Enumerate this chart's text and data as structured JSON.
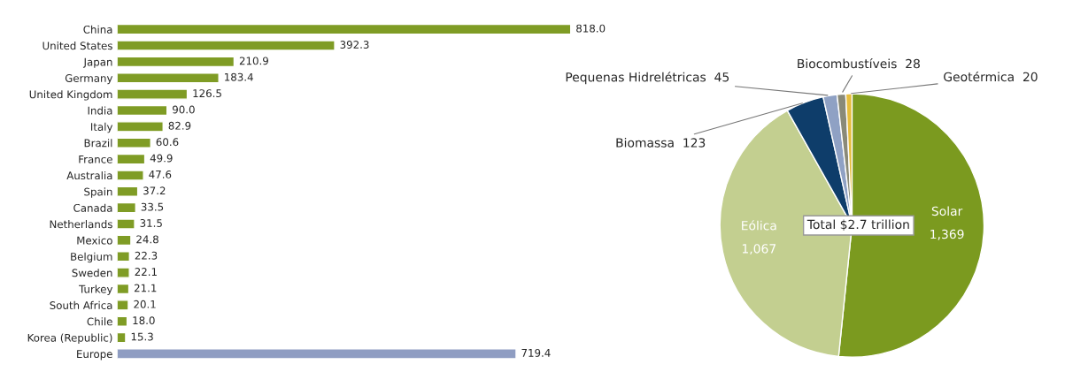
{
  "chart_data": [
    {
      "type": "bar",
      "orientation": "horizontal",
      "value_labels": [
        "818.0",
        "392.3",
        "210.9",
        "183.4",
        "126.5",
        "90.0",
        "82.9",
        "60.6",
        "49.9",
        "47.6",
        "37.2",
        "33.5",
        "31.5",
        "24.8",
        "22.3",
        "22.1",
        "21.1",
        "20.1",
        "18.0",
        "15.3",
        "719.4"
      ],
      "categories": [
        "China",
        "United States",
        "Japan",
        "Germany",
        "United Kingdom",
        "India",
        "Italy",
        "Brazil",
        "France",
        "Australia",
        "Spain",
        "Canada",
        "Netherlands",
        "Mexico",
        "Belgium",
        "Sweden",
        "Turkey",
        "South Africa",
        "Chile",
        "Korea (Republic)",
        "Europe"
      ],
      "values": [
        818.0,
        392.3,
        210.9,
        183.4,
        126.5,
        90.0,
        82.9,
        60.6,
        49.9,
        47.6,
        37.2,
        33.5,
        31.5,
        24.8,
        22.3,
        22.1,
        21.1,
        20.1,
        18.0,
        15.3,
        719.4
      ],
      "colors": [
        "#7f9c25",
        "#7f9c25",
        "#7f9c25",
        "#7f9c25",
        "#7f9c25",
        "#7f9c25",
        "#7f9c25",
        "#7f9c25",
        "#7f9c25",
        "#7f9c25",
        "#7f9c25",
        "#7f9c25",
        "#7f9c25",
        "#7f9c25",
        "#7f9c25",
        "#7f9c25",
        "#7f9c25",
        "#7f9c25",
        "#7f9c25",
        "#7f9c25",
        "#8f9dc2"
      ]
    },
    {
      "type": "pie",
      "categories": [
        "Solar",
        "Eólica",
        "Biomassa",
        "Pequenas Hidrelétricas",
        "Biocombustíveis",
        "Geotérmica"
      ],
      "values": [
        1369,
        1067,
        123,
        45,
        28,
        20
      ],
      "value_labels": [
        "1,369",
        "1,067",
        "123",
        "45",
        "28",
        "20"
      ],
      "colors": [
        "#7b9a1f",
        "#c3cf90",
        "#0e3d6a",
        "#8fa1c4",
        "#8a8a78",
        "#e6bd3c"
      ],
      "annotations": [
        "Total $2.7 trillion"
      ]
    }
  ]
}
